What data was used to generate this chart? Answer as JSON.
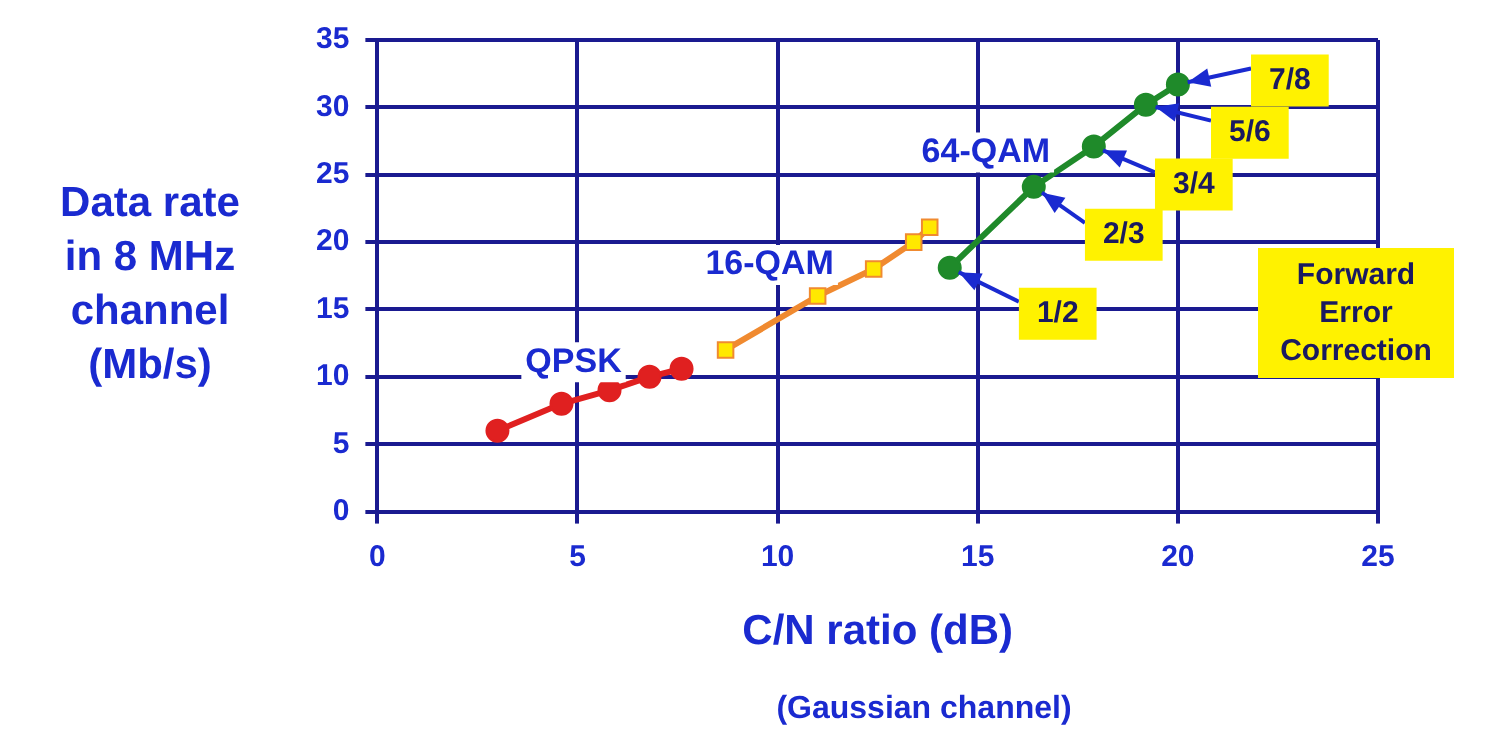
{
  "chart_data": {
    "type": "line",
    "xlabel": "C/N ratio (dB)",
    "ylabel": "Data rate in 8 MHz channel (Mb/s)",
    "xlim": [
      0,
      25
    ],
    "xticks": [
      0,
      5,
      10,
      15,
      20,
      25
    ],
    "ylim": [
      0,
      35
    ],
    "yticks": [
      0,
      5,
      10,
      15,
      20,
      25,
      30,
      35
    ],
    "grid": true,
    "legend": false,
    "line_style": "solid",
    "series": [
      {
        "name": "QPSK",
        "color": "#e02020",
        "marker": "circle",
        "x": [
          3.0,
          4.6,
          5.8,
          6.8,
          7.6
        ],
        "values": [
          6,
          8,
          9,
          10,
          10.6
        ]
      },
      {
        "name": "16-QAM",
        "color": "#f08a30",
        "marker": "square",
        "x": [
          8.7,
          11.0,
          12.4,
          13.4,
          13.8
        ],
        "values": [
          12,
          16,
          18,
          20,
          21.1
        ]
      },
      {
        "name": "64-QAM",
        "color": "#1f8a2a",
        "marker": "circle",
        "x": [
          14.3,
          16.4,
          17.9,
          19.2,
          20.0
        ],
        "values": [
          18.1,
          24.1,
          27.1,
          30.2,
          31.7
        ]
      }
    ],
    "annotations": [
      {
        "text": "1/2",
        "x": 14.3,
        "y": 18.1
      },
      {
        "text": "2/3",
        "x": 16.4,
        "y": 24.1
      },
      {
        "text": "3/4",
        "x": 17.9,
        "y": 27.1
      },
      {
        "text": "5/6",
        "x": 19.2,
        "y": 30.2
      },
      {
        "text": "7/8",
        "x": 20.0,
        "y": 31.7
      },
      "Forward Error Correction",
      "(Gaussian channel)"
    ]
  }
}
